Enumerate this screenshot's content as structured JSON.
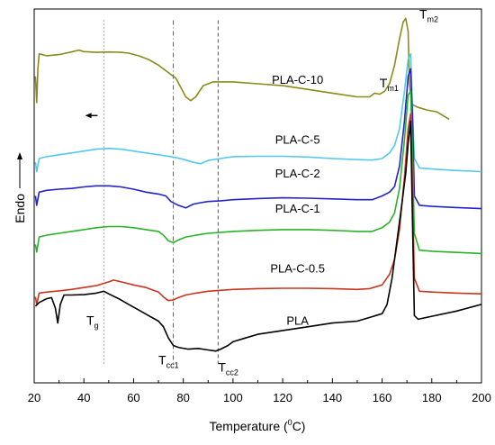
{
  "chart_data": {
    "type": "line",
    "title": "",
    "xlabel": "Temperature (°C)",
    "xlabel_parts": {
      "main": "Temperature (",
      "sup": "0",
      "tail": "C)"
    },
    "ylabel": "Endo",
    "xlim": [
      20,
      200
    ],
    "xticks": [
      20,
      40,
      60,
      80,
      100,
      120,
      140,
      160,
      180,
      200
    ],
    "grid": false,
    "legend": "inline labels",
    "series": [
      {
        "name": "PLA-C-10",
        "color": "#8b8b1a",
        "points": [
          [
            20.5,
            0.82
          ],
          [
            21,
            0.75
          ],
          [
            21.5,
            0.84
          ],
          [
            22,
            0.88
          ],
          [
            25,
            0.875
          ],
          [
            30,
            0.878
          ],
          [
            35,
            0.885
          ],
          [
            38,
            0.89
          ],
          [
            40,
            0.886
          ],
          [
            45,
            0.884
          ],
          [
            50,
            0.885
          ],
          [
            55,
            0.884
          ],
          [
            58,
            0.882
          ],
          [
            62,
            0.875
          ],
          [
            66,
            0.865
          ],
          [
            70,
            0.85
          ],
          [
            74,
            0.83
          ],
          [
            77,
            0.815
          ],
          [
            79,
            0.79
          ],
          [
            81,
            0.765
          ],
          [
            83,
            0.755
          ],
          [
            85,
            0.765
          ],
          [
            88,
            0.795
          ],
          [
            92,
            0.805
          ],
          [
            100,
            0.805
          ],
          [
            110,
            0.8
          ],
          [
            120,
            0.795
          ],
          [
            130,
            0.785
          ],
          [
            140,
            0.775
          ],
          [
            150,
            0.765
          ],
          [
            155,
            0.765
          ],
          [
            157,
            0.775
          ],
          [
            159,
            0.772
          ],
          [
            161,
            0.78
          ],
          [
            163,
            0.8
          ],
          [
            165,
            0.85
          ],
          [
            167,
            0.92
          ],
          [
            168.5,
            0.965
          ],
          [
            169.5,
            0.975
          ],
          [
            170.5,
            0.94
          ],
          [
            171,
            0.8
          ],
          [
            172,
            0.745
          ],
          [
            174,
            0.738
          ],
          [
            178,
            0.73
          ],
          [
            182,
            0.725
          ],
          [
            187,
            0.705
          ]
        ]
      },
      {
        "name": "PLA-C-5",
        "color": "#55c8ee",
        "points": [
          [
            20.5,
            0.59
          ],
          [
            21,
            0.565
          ],
          [
            22,
            0.6
          ],
          [
            25,
            0.605
          ],
          [
            30,
            0.61
          ],
          [
            35,
            0.615
          ],
          [
            40,
            0.62
          ],
          [
            45,
            0.625
          ],
          [
            50,
            0.627
          ],
          [
            55,
            0.625
          ],
          [
            60,
            0.62
          ],
          [
            65,
            0.615
          ],
          [
            70,
            0.61
          ],
          [
            75,
            0.605
          ],
          [
            80,
            0.598
          ],
          [
            84,
            0.59
          ],
          [
            87,
            0.586
          ],
          [
            90,
            0.595
          ],
          [
            95,
            0.6
          ],
          [
            100,
            0.605
          ],
          [
            110,
            0.606
          ],
          [
            120,
            0.606
          ],
          [
            130,
            0.604
          ],
          [
            140,
            0.6
          ],
          [
            150,
            0.597
          ],
          [
            156,
            0.596
          ],
          [
            160,
            0.6
          ],
          [
            163,
            0.615
          ],
          [
            165,
            0.635
          ],
          [
            167,
            0.68
          ],
          [
            169,
            0.78
          ],
          [
            170.5,
            0.865
          ],
          [
            171.5,
            0.88
          ],
          [
            172.3,
            0.72
          ],
          [
            173,
            0.6
          ],
          [
            175,
            0.575
          ],
          [
            180,
            0.572
          ],
          [
            190,
            0.568
          ],
          [
            200,
            0.565
          ]
        ]
      },
      {
        "name": "PLA-C-2",
        "color": "#2323c8",
        "points": [
          [
            20.5,
            0.5
          ],
          [
            21,
            0.475
          ],
          [
            22,
            0.51
          ],
          [
            25,
            0.515
          ],
          [
            30,
            0.518
          ],
          [
            35,
            0.52
          ],
          [
            40,
            0.524
          ],
          [
            45,
            0.527
          ],
          [
            50,
            0.527
          ],
          [
            55,
            0.524
          ],
          [
            60,
            0.518
          ],
          [
            65,
            0.51
          ],
          [
            70,
            0.505
          ],
          [
            73,
            0.5
          ],
          [
            75,
            0.485
          ],
          [
            78,
            0.475
          ],
          [
            81,
            0.468
          ],
          [
            84,
            0.478
          ],
          [
            87,
            0.482
          ],
          [
            90,
            0.485
          ],
          [
            95,
            0.487
          ],
          [
            100,
            0.49
          ],
          [
            110,
            0.493
          ],
          [
            120,
            0.495
          ],
          [
            130,
            0.494
          ],
          [
            140,
            0.492
          ],
          [
            150,
            0.49
          ],
          [
            156,
            0.49
          ],
          [
            160,
            0.5
          ],
          [
            163,
            0.51
          ],
          [
            165,
            0.525
          ],
          [
            167,
            0.58
          ],
          [
            169,
            0.7
          ],
          [
            170.5,
            0.82
          ],
          [
            171.5,
            0.84
          ],
          [
            172.3,
            0.7
          ],
          [
            173,
            0.5
          ],
          [
            175,
            0.475
          ],
          [
            180,
            0.472
          ],
          [
            190,
            0.469
          ],
          [
            200,
            0.466
          ]
        ]
      },
      {
        "name": "PLA-C-1",
        "color": "#28b428",
        "points": [
          [
            20.5,
            0.37
          ],
          [
            21,
            0.35
          ],
          [
            22,
            0.39
          ],
          [
            25,
            0.395
          ],
          [
            30,
            0.4
          ],
          [
            35,
            0.405
          ],
          [
            40,
            0.41
          ],
          [
            45,
            0.415
          ],
          [
            50,
            0.418
          ],
          [
            55,
            0.418
          ],
          [
            60,
            0.415
          ],
          [
            65,
            0.41
          ],
          [
            70,
            0.405
          ],
          [
            72,
            0.395
          ],
          [
            74,
            0.38
          ],
          [
            76,
            0.375
          ],
          [
            78,
            0.382
          ],
          [
            81,
            0.39
          ],
          [
            85,
            0.395
          ],
          [
            90,
            0.4
          ],
          [
            100,
            0.405
          ],
          [
            110,
            0.408
          ],
          [
            120,
            0.41
          ],
          [
            130,
            0.41
          ],
          [
            140,
            0.408
          ],
          [
            150,
            0.405
          ],
          [
            156,
            0.405
          ],
          [
            160,
            0.415
          ],
          [
            163,
            0.43
          ],
          [
            165,
            0.455
          ],
          [
            167,
            0.52
          ],
          [
            169,
            0.65
          ],
          [
            170.5,
            0.77
          ],
          [
            171.5,
            0.78
          ],
          [
            172.3,
            0.6
          ],
          [
            173,
            0.4
          ],
          [
            175,
            0.355
          ],
          [
            180,
            0.352
          ],
          [
            190,
            0.349
          ],
          [
            200,
            0.346
          ]
        ]
      },
      {
        "name": "PLA-C-0.5",
        "color": "#c8361e",
        "points": [
          [
            20.5,
            0.23
          ],
          [
            21,
            0.21
          ],
          [
            22,
            0.24
          ],
          [
            25,
            0.243
          ],
          [
            30,
            0.246
          ],
          [
            35,
            0.25
          ],
          [
            40,
            0.255
          ],
          [
            45,
            0.26
          ],
          [
            50,
            0.27
          ],
          [
            52,
            0.275
          ],
          [
            55,
            0.27
          ],
          [
            60,
            0.262
          ],
          [
            65,
            0.255
          ],
          [
            70,
            0.243
          ],
          [
            72,
            0.23
          ],
          [
            74,
            0.22
          ],
          [
            76,
            0.222
          ],
          [
            78,
            0.228
          ],
          [
            81,
            0.235
          ],
          [
            85,
            0.24
          ],
          [
            90,
            0.245
          ],
          [
            100,
            0.25
          ],
          [
            110,
            0.252
          ],
          [
            120,
            0.253
          ],
          [
            130,
            0.253
          ],
          [
            140,
            0.252
          ],
          [
            150,
            0.25
          ],
          [
            155,
            0.252
          ],
          [
            160,
            0.262
          ],
          [
            163,
            0.29
          ],
          [
            165,
            0.33
          ],
          [
            167,
            0.41
          ],
          [
            169,
            0.55
          ],
          [
            170.5,
            0.68
          ],
          [
            171.5,
            0.72
          ],
          [
            172.3,
            0.5
          ],
          [
            173,
            0.28
          ],
          [
            175,
            0.245
          ],
          [
            180,
            0.243
          ],
          [
            190,
            0.24
          ],
          [
            200,
            0.238
          ]
        ]
      },
      {
        "name": "PLA",
        "color": "#000000",
        "points": [
          [
            20.5,
            0.205
          ],
          [
            22,
            0.215
          ],
          [
            25,
            0.225
          ],
          [
            27,
            0.228
          ],
          [
            28.5,
            0.2
          ],
          [
            29.5,
            0.16
          ],
          [
            30.5,
            0.21
          ],
          [
            32,
            0.235
          ],
          [
            35,
            0.235
          ],
          [
            40,
            0.236
          ],
          [
            45,
            0.24
          ],
          [
            48,
            0.245
          ],
          [
            50,
            0.238
          ],
          [
            54,
            0.225
          ],
          [
            58,
            0.21
          ],
          [
            62,
            0.195
          ],
          [
            66,
            0.18
          ],
          [
            70,
            0.165
          ],
          [
            72,
            0.15
          ],
          [
            74,
            0.12
          ],
          [
            76,
            0.1
          ],
          [
            78,
            0.095
          ],
          [
            82,
            0.09
          ],
          [
            86,
            0.092
          ],
          [
            90,
            0.088
          ],
          [
            93,
            0.085
          ],
          [
            95,
            0.09
          ],
          [
            98,
            0.1
          ],
          [
            100,
            0.11
          ],
          [
            105,
            0.12
          ],
          [
            110,
            0.13
          ],
          [
            120,
            0.14
          ],
          [
            130,
            0.15
          ],
          [
            140,
            0.16
          ],
          [
            150,
            0.165
          ],
          [
            155,
            0.175
          ],
          [
            160,
            0.185
          ],
          [
            162,
            0.21
          ],
          [
            164,
            0.28
          ],
          [
            166,
            0.38
          ],
          [
            168,
            0.48
          ],
          [
            169.5,
            0.56
          ],
          [
            170.5,
            0.64
          ],
          [
            171.5,
            0.7
          ],
          [
            172.2,
            0.45
          ],
          [
            173,
            0.18
          ],
          [
            174.5,
            0.17
          ],
          [
            180,
            0.178
          ],
          [
            190,
            0.192
          ],
          [
            200,
            0.21
          ]
        ]
      }
    ],
    "series_labels": [
      {
        "text": "PLA-C-10",
        "x": 126,
        "y": 0.8
      },
      {
        "text": "PLA-C-5",
        "x": 126,
        "y": 0.64
      },
      {
        "text": "PLA-C-2",
        "x": 126,
        "y": 0.55
      },
      {
        "text": "PLA-C-1",
        "x": 126,
        "y": 0.455
      },
      {
        "text": "PLA-C-0.5",
        "x": 126,
        "y": 0.295
      },
      {
        "text": "PLA",
        "x": 126,
        "y": 0.155
      }
    ],
    "vlines": [
      {
        "x": 48,
        "style": "dotted"
      },
      {
        "x": 76,
        "style": "dashdot"
      },
      {
        "x": 94,
        "style": "dashed"
      }
    ],
    "annotations": [
      {
        "text": "T",
        "sub": "g",
        "x": 41,
        "y": 0.155
      },
      {
        "text": "T",
        "sub": "cc1",
        "x": 70,
        "y": 0.05
      },
      {
        "text": "T",
        "sub": "cc2",
        "x": 94,
        "y": 0.03
      },
      {
        "text": "T",
        "sub": "m1",
        "x": 159,
        "y": 0.79
      },
      {
        "text": "T",
        "sub": "m2",
        "x": 175,
        "y": 0.975
      }
    ],
    "arrow": {
      "direction": "left",
      "x_from": 45.5,
      "x_to": 40.5,
      "y": 0.715
    }
  }
}
